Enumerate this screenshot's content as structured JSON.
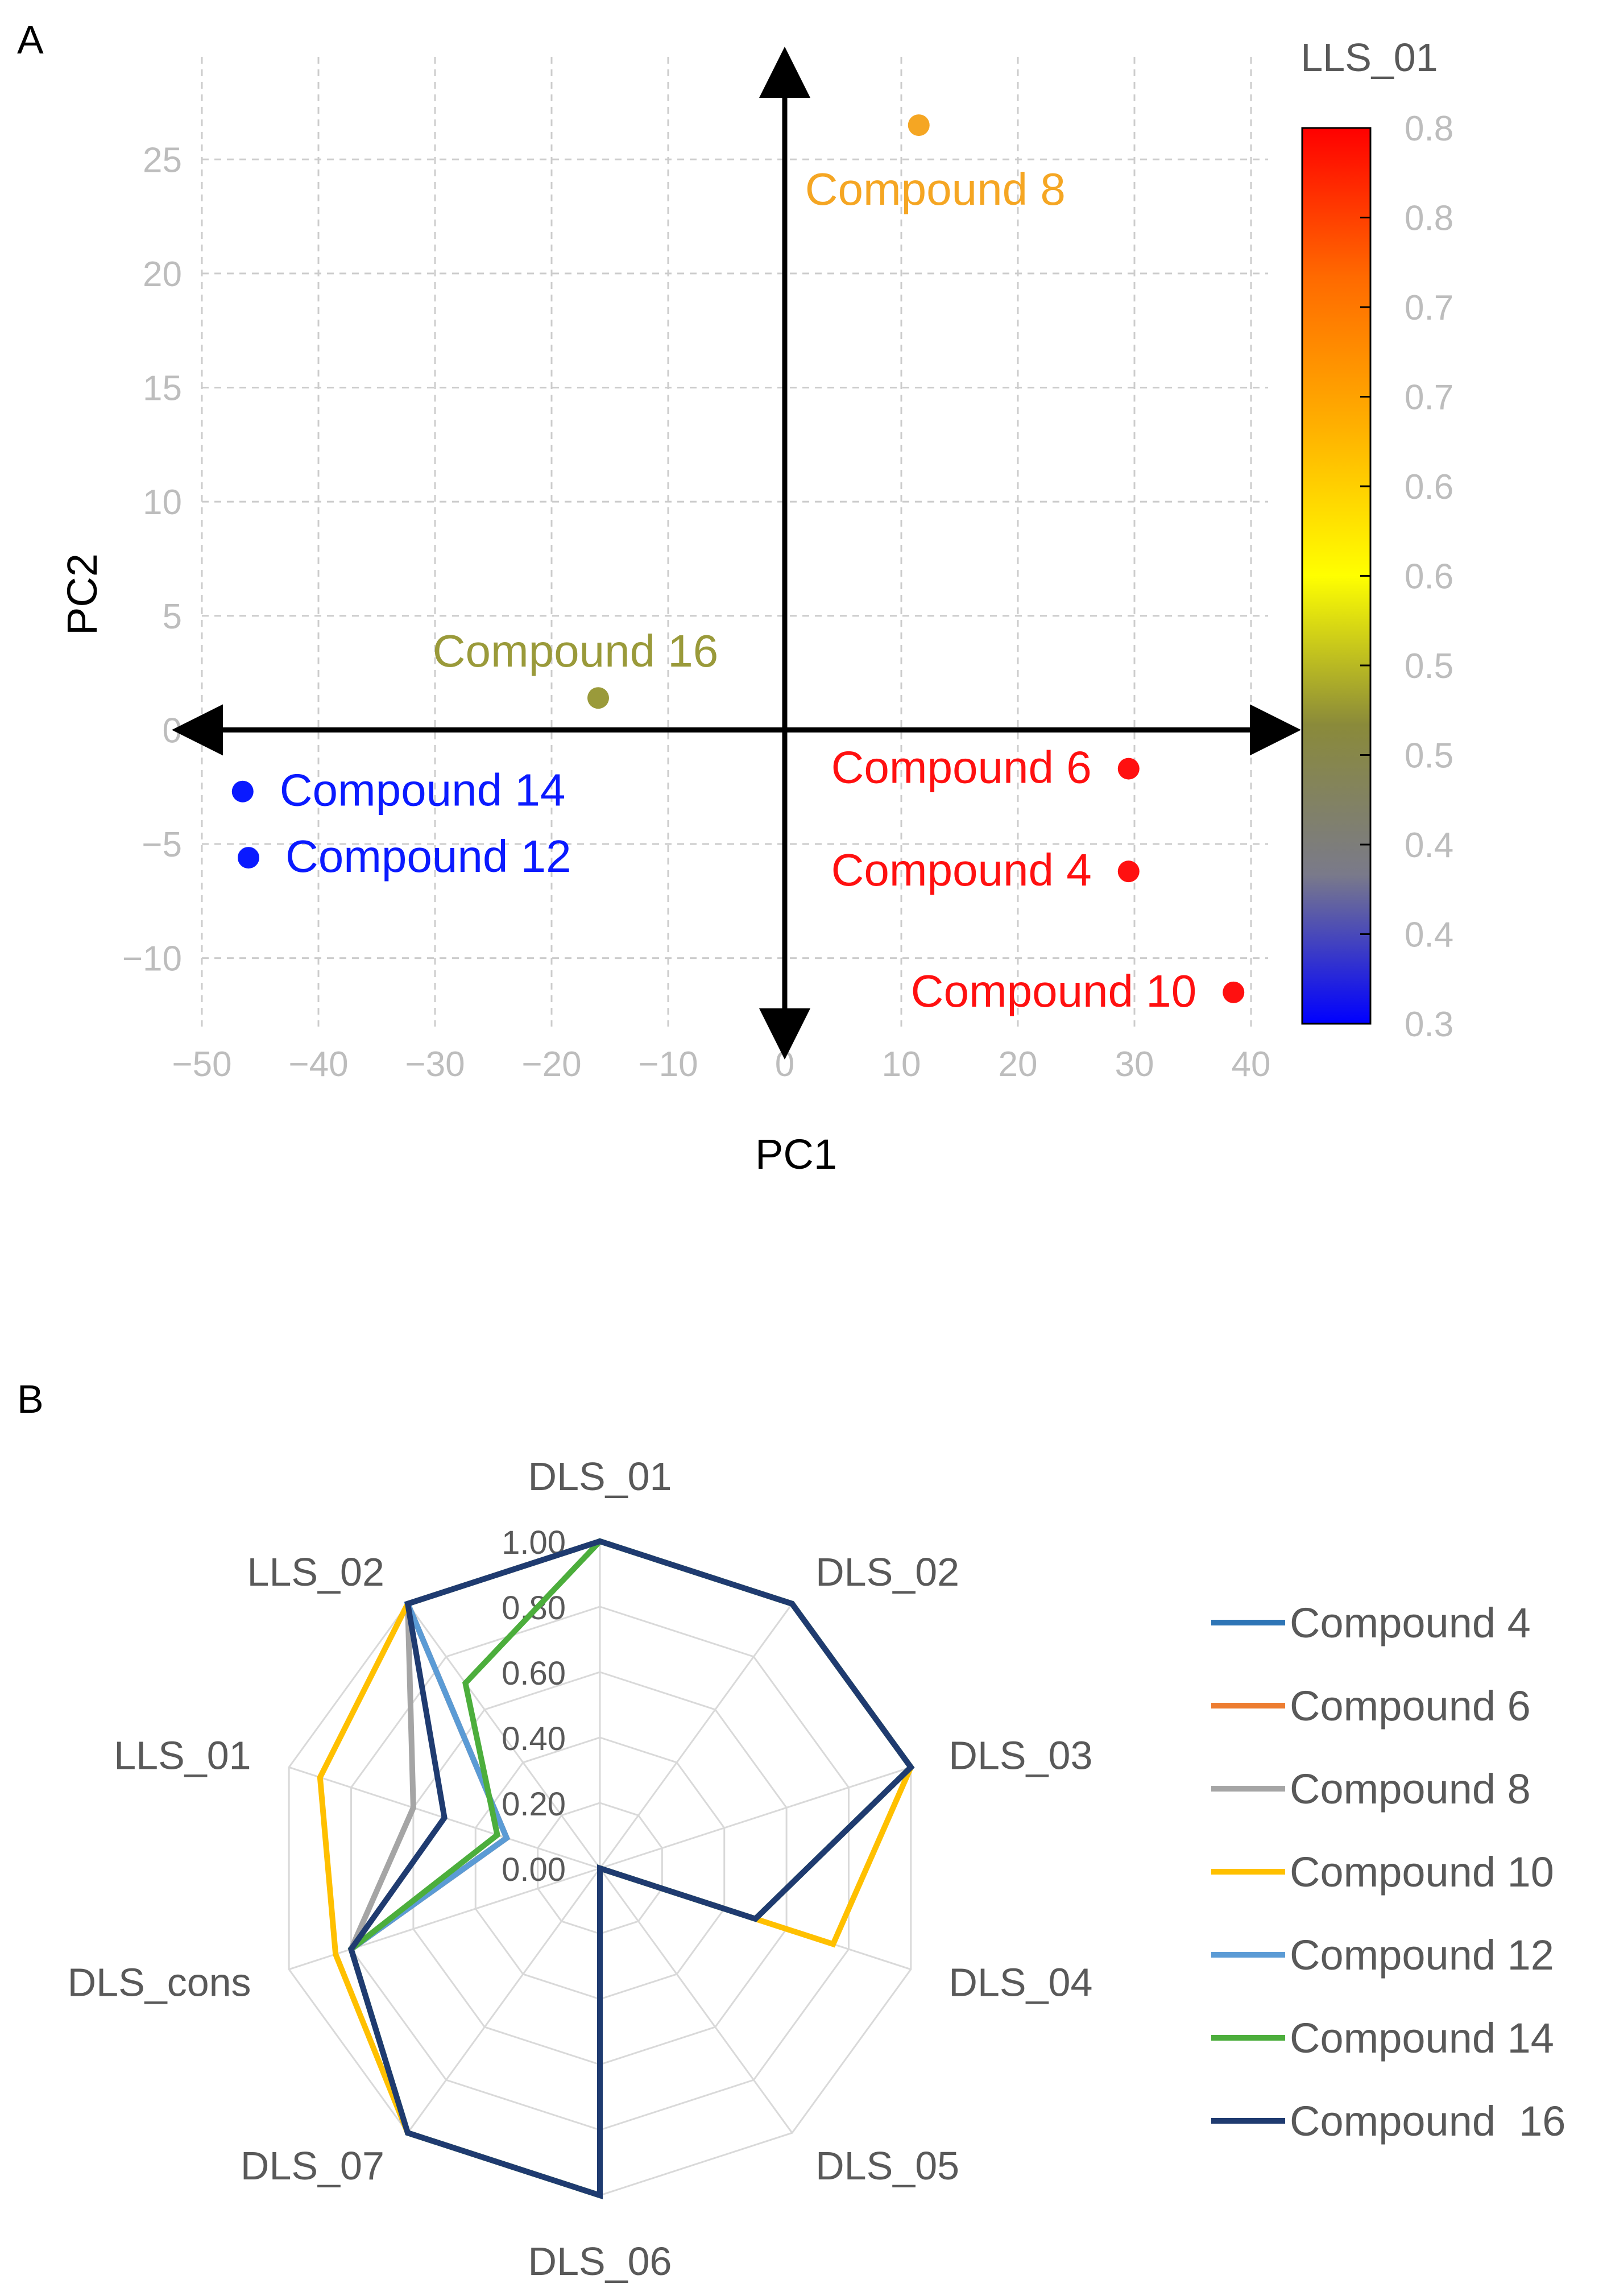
{
  "panels": {
    "a_label": "A",
    "b_label": "B"
  },
  "chart_data": [
    {
      "type": "scatter",
      "title": "",
      "xlabel": "PC1",
      "ylabel": "PC2",
      "xlim": [
        -50,
        40
      ],
      "ylim": [
        -13,
        27
      ],
      "xticks": [
        "−50",
        "−40",
        "−30",
        "−20",
        "−10",
        "0",
        "10",
        "20",
        "30",
        "40"
      ],
      "xtick_values": [
        -50,
        -40,
        -30,
        -20,
        -10,
        0,
        10,
        20,
        30,
        40
      ],
      "yticks": [
        "−10",
        "−5",
        "0",
        "5",
        "10",
        "15",
        "20",
        "25"
      ],
      "ytick_values": [
        -10,
        -5,
        0,
        5,
        10,
        15,
        20,
        25
      ],
      "grid": true,
      "colorbar": {
        "title": "LLS_01",
        "tick_labels": [
          "0.8",
          "0.8",
          "0.7",
          "0.7",
          "0.6",
          "0.6",
          "0.5",
          "0.5",
          "0.4",
          "0.4",
          "0.3"
        ],
        "range": [
          0.3,
          0.8
        ],
        "colors": [
          "#ff0000",
          "#ff6a00",
          "#ffb000",
          "#ffff00",
          "#8a8a3a",
          "#7a7a8a",
          "#0000ff"
        ]
      },
      "points": [
        {
          "label": "Compound 8",
          "x": 11.5,
          "y": 26.5,
          "color": "#f5a623",
          "label_pos": "below"
        },
        {
          "label": "Compound 16",
          "x": -16,
          "y": 1.4,
          "color": "#9a9a3a",
          "label_pos": "above"
        },
        {
          "label": "Compound 14",
          "x": -46.5,
          "y": -2.7,
          "color": "#0a1aff",
          "label_pos": "right"
        },
        {
          "label": "Compound 12",
          "x": -46,
          "y": -5.6,
          "color": "#0a1aff",
          "label_pos": "right"
        },
        {
          "label": "Compound 6",
          "x": 29.5,
          "y": -1.7,
          "color": "#ff1010",
          "label_pos": "left"
        },
        {
          "label": "Compound 4",
          "x": 29.5,
          "y": -6.2,
          "color": "#ff1010",
          "label_pos": "left"
        },
        {
          "label": "Compound 10",
          "x": 38.5,
          "y": -11.5,
          "color": "#ff1010",
          "label_pos": "left"
        }
      ]
    },
    {
      "type": "radar",
      "title": "",
      "axes": [
        "DLS_01",
        "DLS_02",
        "DLS_03",
        "DLS_04",
        "DLS_05",
        "DLS_06",
        "DLS_07",
        "DLS_cons",
        "LLS_01",
        "LLS_02"
      ],
      "radial_ticks": [
        "0.00",
        "0.20",
        "0.40",
        "0.60",
        "0.80",
        "1.00"
      ],
      "radial_tick_values": [
        0,
        0.2,
        0.4,
        0.6,
        0.8,
        1.0
      ],
      "rlim": [
        0,
        1
      ],
      "legend_position": "right",
      "series": [
        {
          "name": "Compound 4",
          "color": "#2e75b6",
          "values": [
            1,
            1,
            1,
            0.5,
            0,
            1,
            1,
            0.8,
            0.3,
            1
          ]
        },
        {
          "name": "Compound 6",
          "color": "#ed7d31",
          "values": [
            1,
            1,
            1,
            0.5,
            0,
            1,
            1,
            0.8,
            0.3,
            1
          ]
        },
        {
          "name": "Compound 8",
          "color": "#a5a5a5",
          "values": [
            1,
            1,
            1,
            0.5,
            0,
            1,
            1,
            0.8,
            0.6,
            1
          ]
        },
        {
          "name": "Compound 10",
          "color": "#ffc000",
          "values": [
            1,
            1,
            1,
            0.75,
            0,
            1,
            1,
            0.85,
            0.9,
            1
          ]
        },
        {
          "name": "Compound 12",
          "color": "#5b9bd5",
          "values": [
            1,
            1,
            1,
            0.5,
            0,
            1,
            1,
            0.8,
            0.3,
            1
          ]
        },
        {
          "name": "Compound 14",
          "color": "#4cae3c",
          "values": [
            1,
            1,
            1,
            0.5,
            0,
            1,
            1,
            0.8,
            0.33,
            0.7
          ]
        },
        {
          "name": "Compound  16",
          "color": "#1f3b70",
          "values": [
            1,
            1,
            1,
            0.5,
            0,
            1,
            1,
            0.8,
            0.5,
            1
          ]
        }
      ]
    }
  ]
}
